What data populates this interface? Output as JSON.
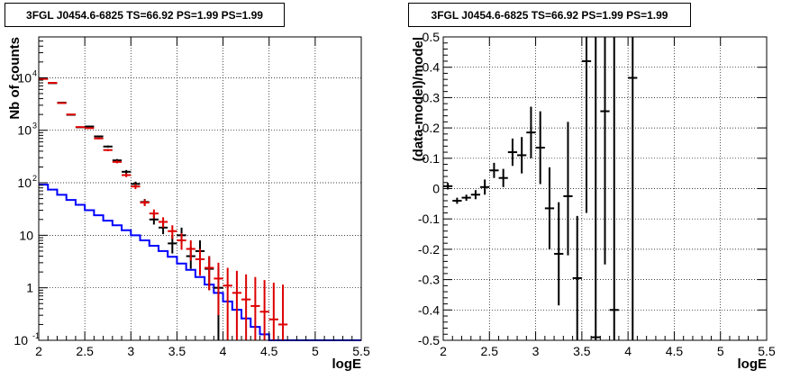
{
  "chart_data": [
    {
      "type": "histogram",
      "title": "3FGL J0454.6-6825 TS=66.92 PS=1.99 PS=1.99",
      "xlabel": "logE",
      "ylabel": "Nb of counts",
      "xlim": [
        2,
        5.5
      ],
      "ylim": [
        0.1,
        60000
      ],
      "yscale": "log",
      "grid": true,
      "x_ticks": [
        "2",
        "2.5",
        "3",
        "3.5",
        "4",
        "4.5",
        "5",
        "5.5"
      ],
      "y_ticks": [
        {
          "value": 0.1,
          "label": "10^-1"
        },
        {
          "value": 1,
          "label": "1"
        },
        {
          "value": 10,
          "label": "10"
        },
        {
          "value": 100,
          "label": "10^2"
        },
        {
          "value": 1000,
          "label": "10^3"
        },
        {
          "value": 10000,
          "label": "10^4"
        }
      ],
      "bin_edges": [
        2.0,
        2.1,
        2.2,
        2.3,
        2.4,
        2.5,
        2.6,
        2.7,
        2.8,
        2.9,
        3.0,
        3.1,
        3.2,
        3.3,
        3.4,
        3.5,
        3.6,
        3.7,
        3.8,
        3.9,
        4.0,
        4.1,
        4.2,
        4.3,
        4.4,
        4.5,
        4.6,
        4.7,
        4.8,
        4.9,
        5.0,
        5.1,
        5.2,
        5.3,
        5.4,
        5.5
      ],
      "series": [
        {
          "kind": "step",
          "color": "#0000ff",
          "values": [
            92,
            74,
            59,
            47,
            38,
            30,
            24,
            19,
            15.5,
            12.5,
            10,
            8,
            6.3,
            5,
            3.9,
            2.9,
            2.2,
            1.6,
            1.15,
            0.8,
            0.55,
            0.38,
            0.26,
            0.18,
            0.13,
            0.1,
            0.1,
            0.1,
            0.1,
            0.1,
            0.1,
            0.1,
            0.1,
            0.1,
            0.1
          ]
        },
        {
          "kind": "points",
          "color": "#000000",
          "x": [
            2.05,
            2.15,
            2.25,
            2.35,
            2.45,
            2.55,
            2.65,
            2.75,
            2.85,
            2.95,
            3.05,
            3.15,
            3.25,
            3.35,
            3.45,
            3.55,
            3.65,
            3.75,
            3.85,
            3.95
          ],
          "y": [
            9600,
            7900,
            3350,
            1970,
            1140,
            1180,
            765,
            490,
            267,
            162,
            95,
            43,
            20,
            14,
            7,
            10,
            4,
            5,
            2.3,
            1
          ],
          "ylo": [
            9500,
            7800,
            3290,
            1925,
            1106,
            1146,
            737,
            468,
            251,
            149,
            85,
            37,
            16,
            10.5,
            4.5,
            7,
            2.3,
            2.5,
            0.9,
            0.1
          ],
          "yhi": [
            9700,
            8000,
            3410,
            2015,
            1174,
            1214,
            793,
            512,
            283,
            175,
            105,
            49,
            25,
            18,
            10,
            14,
            6,
            8,
            4,
            2.5
          ]
        },
        {
          "kind": "points",
          "color": "#dd0000",
          "x": [
            2.05,
            2.15,
            2.25,
            2.35,
            2.45,
            2.55,
            2.65,
            2.75,
            2.85,
            2.95,
            3.05,
            3.15,
            3.25,
            3.35,
            3.45,
            3.55,
            3.65,
            3.75,
            3.85,
            3.95,
            4.05,
            4.15,
            4.25,
            4.35,
            4.45,
            4.55,
            4.65
          ],
          "y": [
            9500,
            8000,
            3300,
            2000,
            1150,
            1100,
            700,
            420,
            250,
            140,
            85,
            42,
            26,
            18,
            12,
            8,
            5.5,
            3.5,
            2.4,
            1.5,
            1.1,
            0.8,
            0.6,
            0.45,
            0.35,
            0.25,
            0.2
          ],
          "ylo": [
            9400,
            7900,
            3240,
            1955,
            1116,
            1067,
            674,
            400,
            235,
            128,
            76,
            36,
            21,
            14,
            8.5,
            5.3,
            3.3,
            1.7,
            0.9,
            0.3,
            0.1,
            0.1,
            0.1,
            0.1,
            0.1,
            0.1,
            0.1
          ],
          "yhi": [
            9600,
            8100,
            3360,
            2045,
            1184,
            1133,
            726,
            440,
            265,
            152,
            94,
            48,
            31,
            22,
            15.5,
            11,
            8,
            5.5,
            4,
            3,
            2.4,
            2.1,
            1.8,
            1.6,
            1.4,
            1.25,
            1.15
          ]
        }
      ]
    },
    {
      "type": "scatter",
      "title": "3FGL J0454.6-6825 TS=66.92 PS=1.99 PS=1.99",
      "xlabel": "logE",
      "ylabel": "(data-model)/model",
      "xlim": [
        2,
        5.5
      ],
      "ylim": [
        -0.5,
        0.5
      ],
      "grid": true,
      "x_ticks": [
        "2",
        "2.5",
        "3",
        "3.5",
        "4",
        "4.5",
        "5",
        "5.5"
      ],
      "y_ticks": [
        "-0.5",
        "-0.4",
        "-0.3",
        "-0.2",
        "-0.1",
        "0",
        "0.1",
        "0.2",
        "0.3",
        "0.4",
        "0.5"
      ],
      "series": [
        {
          "color": "#000000",
          "x": [
            2.05,
            2.15,
            2.25,
            2.35,
            2.45,
            2.55,
            2.65,
            2.75,
            2.85,
            2.95,
            3.05,
            3.15,
            3.25,
            3.35,
            3.45,
            3.55,
            3.65,
            3.75,
            3.85,
            4.05
          ],
          "y": [
            0.008,
            -0.04,
            -0.03,
            -0.02,
            0.005,
            0.06,
            0.035,
            0.12,
            0.11,
            0.185,
            0.135,
            -0.065,
            -0.215,
            -0.025,
            -0.295,
            0.42,
            -0.49,
            0.255,
            -0.4,
            0.365
          ],
          "ylo": [
            -0.003,
            -0.05,
            -0.04,
            -0.035,
            -0.02,
            0.035,
            0.005,
            0.075,
            0.05,
            0.1,
            0.015,
            -0.2,
            -0.385,
            -0.22,
            -0.5,
            -0.08,
            -0.5,
            -0.25,
            -0.5,
            -0.5
          ],
          "yhi": [
            0.019,
            -0.03,
            -0.02,
            -0.005,
            0.03,
            0.085,
            0.065,
            0.165,
            0.17,
            0.27,
            0.255,
            0.07,
            -0.045,
            0.22,
            -0.09,
            0.5,
            0.5,
            0.5,
            0.5,
            0.5
          ]
        }
      ]
    }
  ]
}
